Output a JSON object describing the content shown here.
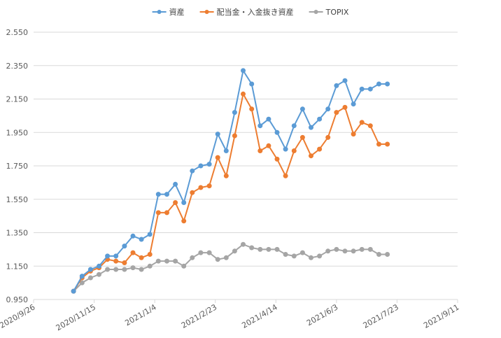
{
  "chart_data": {
    "type": "line",
    "title": "",
    "xlabel": "",
    "ylabel": "",
    "x_ticks": [
      "2020/9/26",
      "2020/11/15",
      "2021/1/4",
      "2021/2/23",
      "2021/4/14",
      "2021/6/3",
      "2021/7/23",
      "2021/9/11"
    ],
    "y_ticks": [
      "0.950",
      "1.150",
      "1.350",
      "1.550",
      "1.750",
      "1.950",
      "2.150",
      "2.350",
      "2.550"
    ],
    "xlim": [
      "2020/9/26",
      "2021/9/11"
    ],
    "ylim": [
      0.95,
      2.55
    ],
    "grid": "horizontal",
    "legend": "top",
    "x": [
      "2020/10/29",
      "2020/11/5",
      "2020/11/12",
      "2020/11/19",
      "2020/11/26",
      "2020/12/3",
      "2020/12/10",
      "2020/12/17",
      "2020/12/24",
      "2020/12/31",
      "2021/1/7",
      "2021/1/14",
      "2021/1/21",
      "2021/1/28",
      "2021/2/4",
      "2021/2/11",
      "2021/2/18",
      "2021/2/25",
      "2021/3/4",
      "2021/3/11",
      "2021/3/18",
      "2021/3/25",
      "2021/4/1",
      "2021/4/8",
      "2021/4/15",
      "2021/4/22",
      "2021/4/29",
      "2021/5/6",
      "2021/5/13",
      "2021/5/20",
      "2021/5/27",
      "2021/6/3",
      "2021/6/10",
      "2021/6/17",
      "2021/6/24",
      "2021/7/1",
      "2021/7/8",
      "2021/7/15"
    ],
    "series": [
      {
        "name": "資産",
        "color": "#5b9bd5",
        "values": [
          1.0,
          1.09,
          1.13,
          1.15,
          1.21,
          1.21,
          1.27,
          1.33,
          1.31,
          1.34,
          1.58,
          1.58,
          1.64,
          1.53,
          1.72,
          1.75,
          1.76,
          1.94,
          1.84,
          2.07,
          2.32,
          2.24,
          1.99,
          2.03,
          1.95,
          1.85,
          1.99,
          2.09,
          1.98,
          2.03,
          2.09,
          2.23,
          2.26,
          2.12,
          2.21,
          2.21,
          2.24,
          2.24
        ]
      },
      {
        "name": "配当金・入金抜き資産",
        "color": "#ed7d31",
        "values": [
          1.0,
          1.08,
          1.12,
          1.14,
          1.19,
          1.18,
          1.17,
          1.23,
          1.2,
          1.22,
          1.47,
          1.47,
          1.53,
          1.42,
          1.59,
          1.62,
          1.63,
          1.8,
          1.69,
          1.93,
          2.18,
          2.09,
          1.84,
          1.87,
          1.79,
          1.69,
          1.84,
          1.92,
          1.81,
          1.85,
          1.92,
          2.07,
          2.1,
          1.94,
          2.01,
          1.99,
          1.88,
          1.88
        ]
      },
      {
        "name": "TOPIX",
        "color": "#a5a5a5",
        "values": [
          1.0,
          1.05,
          1.08,
          1.1,
          1.13,
          1.13,
          1.13,
          1.14,
          1.13,
          1.15,
          1.18,
          1.18,
          1.18,
          1.15,
          1.2,
          1.23,
          1.23,
          1.19,
          1.2,
          1.24,
          1.28,
          1.26,
          1.25,
          1.25,
          1.25,
          1.22,
          1.21,
          1.23,
          1.2,
          1.21,
          1.24,
          1.25,
          1.24,
          1.24,
          1.25,
          1.25,
          1.22,
          1.22
        ]
      }
    ]
  }
}
